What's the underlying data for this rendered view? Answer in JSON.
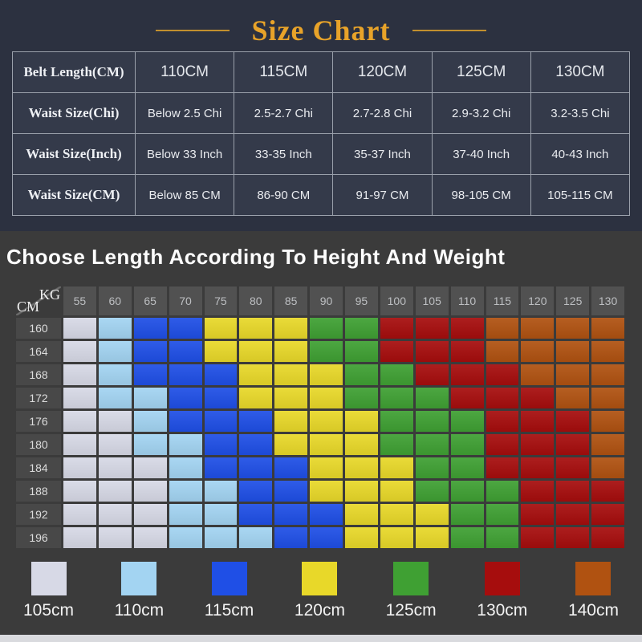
{
  "title": "Size Chart",
  "colors": {
    "accent_gold": "#e8a329",
    "top_background": "#2c3140",
    "bottom_background": "#3b3b3b",
    "table_border": "#9aa0ab"
  },
  "size_table": {
    "rows": [
      {
        "label": "Belt Length(CM)",
        "header": true,
        "values": [
          "110CM",
          "115CM",
          "120CM",
          "125CM",
          "130CM"
        ]
      },
      {
        "label": "Waist Size(Chi)",
        "header": false,
        "values": [
          "Below 2.5 Chi",
          "2.5-2.7 Chi",
          "2.7-2.8 Chi",
          "2.9-3.2 Chi",
          "3.2-3.5 Chi"
        ]
      },
      {
        "label": "Waist Size(Inch)",
        "header": false,
        "values": [
          "Below 33 Inch",
          "33-35 Inch",
          "35-37 Inch",
          "37-40 Inch",
          "40-43 Inch"
        ]
      },
      {
        "label": "Waist Size(CM)",
        "header": false,
        "values": [
          "Below 85 CM",
          "86-90 CM",
          "91-97 CM",
          "98-105 CM",
          "105-115 CM"
        ]
      }
    ]
  },
  "section2": {
    "title": "Choose Length According To Height And Weight"
  },
  "chart_data": {
    "type": "heatmap",
    "title": "Choose Length According To Height And Weight",
    "xlabel": "KG",
    "ylabel": "CM",
    "x_ticks": [
      "55",
      "60",
      "65",
      "70",
      "75",
      "80",
      "85",
      "90",
      "95",
      "100",
      "105",
      "110",
      "115",
      "120",
      "125",
      "130"
    ],
    "y_ticks": [
      "160",
      "164",
      "168",
      "172",
      "176",
      "180",
      "184",
      "188",
      "192",
      "196"
    ],
    "legend_position": "bottom",
    "legend": [
      {
        "label": "105cm",
        "color": "#d7d9e6"
      },
      {
        "label": "110cm",
        "color": "#a3d4f2"
      },
      {
        "label": "115cm",
        "color": "#1f4fe6"
      },
      {
        "label": "120cm",
        "color": "#e8d829"
      },
      {
        "label": "125cm",
        "color": "#3fa033"
      },
      {
        "label": "130cm",
        "color": "#a60d0d"
      },
      {
        "label": "140cm",
        "color": "#b05211"
      }
    ],
    "cells": [
      [
        "105",
        "110",
        "115",
        "115",
        "120",
        "120",
        "120",
        "125",
        "125",
        "130",
        "130",
        "130",
        "140",
        "140",
        "140",
        "140"
      ],
      [
        "105",
        "110",
        "115",
        "115",
        "120",
        "120",
        "120",
        "125",
        "125",
        "130",
        "130",
        "130",
        "140",
        "140",
        "140",
        "140"
      ],
      [
        "105",
        "110",
        "115",
        "115",
        "115",
        "120",
        "120",
        "120",
        "125",
        "125",
        "130",
        "130",
        "130",
        "140",
        "140",
        "140"
      ],
      [
        "105",
        "110",
        "110",
        "115",
        "115",
        "120",
        "120",
        "120",
        "125",
        "125",
        "125",
        "130",
        "130",
        "130",
        "140",
        "140"
      ],
      [
        "105",
        "105",
        "110",
        "115",
        "115",
        "115",
        "120",
        "120",
        "120",
        "125",
        "125",
        "125",
        "130",
        "130",
        "130",
        "140"
      ],
      [
        "105",
        "105",
        "110",
        "110",
        "115",
        "115",
        "120",
        "120",
        "120",
        "125",
        "125",
        "125",
        "130",
        "130",
        "130",
        "140"
      ],
      [
        "105",
        "105",
        "105",
        "110",
        "115",
        "115",
        "115",
        "120",
        "120",
        "120",
        "125",
        "125",
        "130",
        "130",
        "130",
        "140"
      ],
      [
        "105",
        "105",
        "105",
        "110",
        "110",
        "115",
        "115",
        "120",
        "120",
        "120",
        "125",
        "125",
        "125",
        "130",
        "130",
        "130"
      ],
      [
        "105",
        "105",
        "105",
        "110",
        "110",
        "115",
        "115",
        "115",
        "120",
        "120",
        "120",
        "125",
        "125",
        "130",
        "130",
        "130"
      ],
      [
        "105",
        "105",
        "105",
        "110",
        "110",
        "110",
        "115",
        "115",
        "120",
        "120",
        "120",
        "125",
        "125",
        "130",
        "130",
        "130"
      ]
    ]
  }
}
